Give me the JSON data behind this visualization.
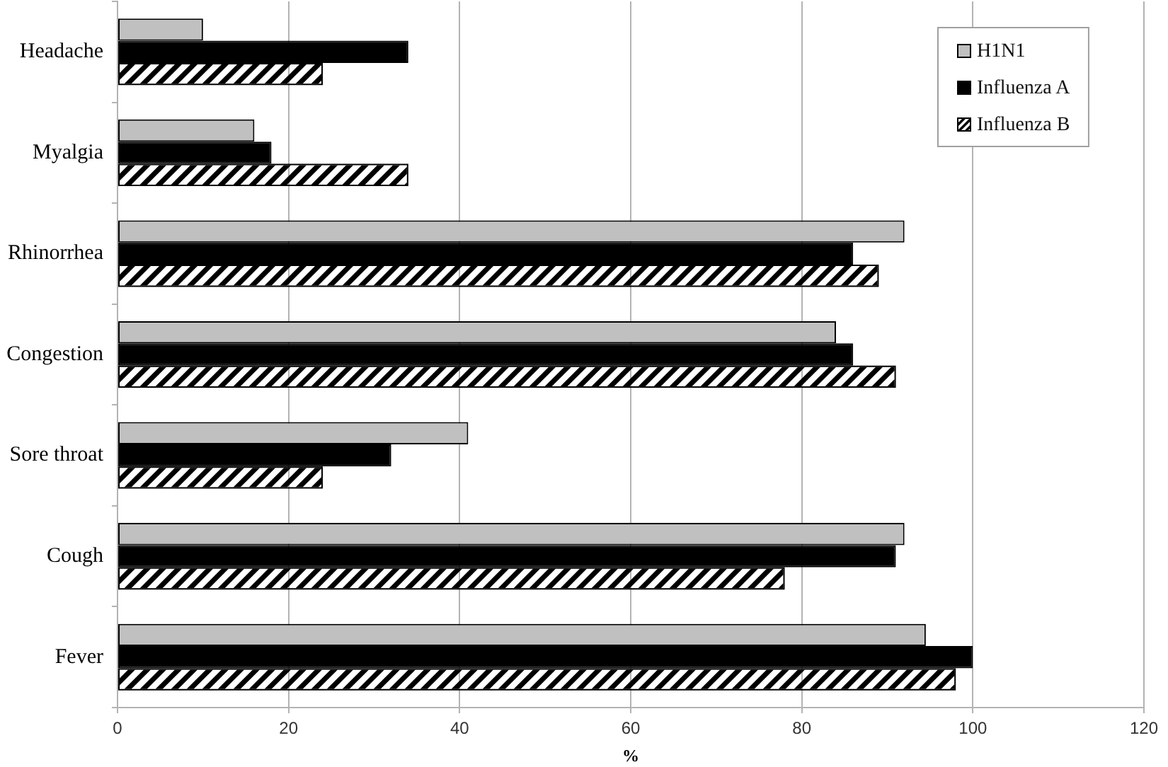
{
  "chart_data": {
    "type": "bar",
    "orientation": "horizontal",
    "xlabel": "%",
    "categories": [
      "Headache",
      "Myalgia",
      "Rhinorrhea",
      "Congestion",
      "Sore throat",
      "Cough",
      "Fever"
    ],
    "series": [
      {
        "name": "H1N1",
        "color": "#c0c0c0",
        "values": [
          10,
          16,
          92,
          84,
          41,
          92,
          94.5
        ]
      },
      {
        "name": "Influenza A",
        "color": "#000000",
        "values": [
          34,
          18,
          86,
          86,
          32,
          91,
          100
        ]
      },
      {
        "name": "Influenza B",
        "color": "#000000",
        "values": [
          24,
          34,
          89,
          91,
          24,
          78,
          98
        ]
      }
    ],
    "xlim": [
      0,
      120
    ],
    "xticks": [
      0,
      20,
      40,
      60,
      80,
      100,
      120
    ],
    "grid": "x",
    "legend": "top right"
  }
}
